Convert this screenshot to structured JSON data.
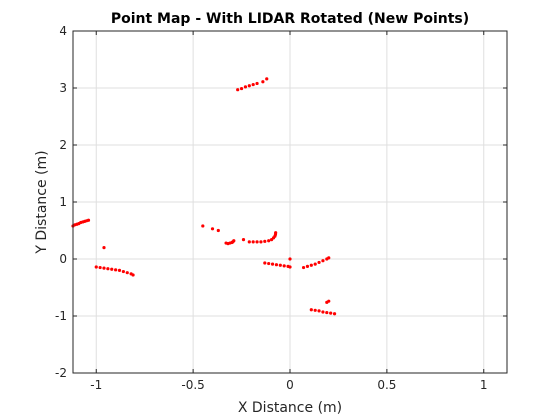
{
  "chart_data": {
    "type": "scatter",
    "title": "Point Map - With LIDAR Rotated (New Points)",
    "xlabel": "X Distance (m)",
    "ylabel": "Y Distance (m)",
    "xlim": [
      -1.12,
      1.12
    ],
    "ylim": [
      -2,
      4
    ],
    "xticks": [
      -1,
      -0.5,
      0,
      0.5,
      1
    ],
    "xtick_labels": [
      "-1",
      "-0.5",
      "0",
      "0.5",
      "1"
    ],
    "yticks": [
      -2,
      -1,
      0,
      1,
      2,
      3,
      4
    ],
    "ytick_labels": [
      "-2",
      "-1",
      "0",
      "1",
      "2",
      "3",
      "4"
    ],
    "grid": true,
    "marker_color": "#ff0000",
    "series": [
      {
        "points": [
          [
            -0.27,
            2.97
          ],
          [
            -0.25,
            2.99
          ],
          [
            -0.23,
            3.02
          ],
          [
            -0.21,
            3.04
          ],
          [
            -0.19,
            3.06
          ],
          [
            -0.17,
            3.08
          ],
          [
            -0.14,
            3.11
          ],
          [
            -0.12,
            3.16
          ],
          [
            -1.12,
            0.58
          ],
          [
            -1.11,
            0.6
          ],
          [
            -1.1,
            0.61
          ],
          [
            -1.09,
            0.62
          ],
          [
            -1.08,
            0.64
          ],
          [
            -1.07,
            0.65
          ],
          [
            -1.06,
            0.66
          ],
          [
            -1.05,
            0.67
          ],
          [
            -1.04,
            0.68
          ],
          [
            -0.96,
            0.2
          ],
          [
            -1.0,
            -0.14
          ],
          [
            -0.98,
            -0.15
          ],
          [
            -0.96,
            -0.16
          ],
          [
            -0.94,
            -0.17
          ],
          [
            -0.92,
            -0.18
          ],
          [
            -0.9,
            -0.19
          ],
          [
            -0.88,
            -0.2
          ],
          [
            -0.86,
            -0.22
          ],
          [
            -0.84,
            -0.24
          ],
          [
            -0.82,
            -0.26
          ],
          [
            -0.81,
            -0.28
          ],
          [
            -0.45,
            0.58
          ],
          [
            -0.4,
            0.53
          ],
          [
            -0.37,
            0.5
          ],
          [
            -0.33,
            0.28
          ],
          [
            -0.32,
            0.27
          ],
          [
            -0.31,
            0.28
          ],
          [
            -0.3,
            0.29
          ],
          [
            -0.295,
            0.3
          ],
          [
            -0.29,
            0.32
          ],
          [
            -0.24,
            0.34
          ],
          [
            -0.21,
            0.3
          ],
          [
            -0.19,
            0.3
          ],
          [
            -0.17,
            0.3
          ],
          [
            -0.15,
            0.3
          ],
          [
            -0.13,
            0.31
          ],
          [
            -0.11,
            0.32
          ],
          [
            -0.095,
            0.34
          ],
          [
            -0.085,
            0.37
          ],
          [
            -0.078,
            0.4
          ],
          [
            -0.075,
            0.43
          ],
          [
            -0.074,
            0.46
          ],
          [
            -0.13,
            -0.07
          ],
          [
            -0.11,
            -0.08
          ],
          [
            -0.09,
            -0.09
          ],
          [
            -0.07,
            -0.1
          ],
          [
            -0.05,
            -0.11
          ],
          [
            -0.03,
            -0.12
          ],
          [
            -0.01,
            -0.13
          ],
          [
            0.0,
            -0.14
          ],
          [
            0.0,
            0.0
          ],
          [
            0.07,
            -0.15
          ],
          [
            0.09,
            -0.13
          ],
          [
            0.11,
            -0.11
          ],
          [
            0.13,
            -0.09
          ],
          [
            0.15,
            -0.06
          ],
          [
            0.17,
            -0.03
          ],
          [
            0.19,
            0.0
          ],
          [
            0.2,
            0.02
          ],
          [
            0.19,
            -0.76
          ],
          [
            0.2,
            -0.74
          ],
          [
            0.11,
            -0.89
          ],
          [
            0.13,
            -0.9
          ],
          [
            0.15,
            -0.91
          ],
          [
            0.17,
            -0.93
          ],
          [
            0.19,
            -0.94
          ],
          [
            0.21,
            -0.95
          ],
          [
            0.23,
            -0.96
          ]
        ]
      }
    ]
  }
}
